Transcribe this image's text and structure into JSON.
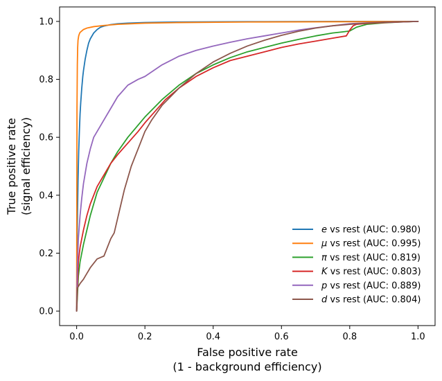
{
  "chart_data": {
    "type": "line",
    "title": "",
    "xlabel_lines": [
      "False positive rate",
      "(1 - background efficiency)"
    ],
    "ylabel_lines": [
      "True positive rate",
      "(signal efficiency)"
    ],
    "xlim": [
      -0.05,
      1.05
    ],
    "ylim": [
      -0.05,
      1.05
    ],
    "xticks": [
      0.0,
      0.2,
      0.4,
      0.6,
      0.8,
      1.0
    ],
    "yticks": [
      0.0,
      0.2,
      0.4,
      0.6,
      0.8,
      1.0
    ],
    "xtick_labels": [
      "0.0",
      "0.2",
      "0.4",
      "0.6",
      "0.8",
      "1.0"
    ],
    "ytick_labels": [
      "0.0",
      "0.2",
      "0.4",
      "0.6",
      "0.8",
      "1.0"
    ],
    "grid": false,
    "legend_position": "lower-right",
    "series": [
      {
        "symbol": "e",
        "suffix": " vs rest (AUC: 0.980)",
        "color": "#1f77b4",
        "x": [
          0,
          0.0005,
          0.001,
          0.002,
          0.004,
          0.006,
          0.008,
          0.01,
          0.012,
          0.015,
          0.018,
          0.02,
          0.025,
          0.03,
          0.035,
          0.04,
          0.05,
          0.06,
          0.07,
          0.08,
          0.1,
          0.12,
          0.15,
          0.2,
          0.3,
          0.5,
          0.8,
          1.0
        ],
        "y": [
          0,
          0.1,
          0.2,
          0.3,
          0.45,
          0.55,
          0.62,
          0.68,
          0.72,
          0.77,
          0.81,
          0.83,
          0.87,
          0.9,
          0.925,
          0.94,
          0.96,
          0.972,
          0.98,
          0.984,
          0.989,
          0.992,
          0.994,
          0.996,
          0.998,
          0.999,
          1.0,
          1.0
        ]
      },
      {
        "symbol": "μ",
        "suffix": " vs rest (AUC: 0.995)",
        "color": "#ff7f0e",
        "x": [
          0,
          0.0005,
          0.001,
          0.002,
          0.003,
          0.004,
          0.006,
          0.008,
          0.01,
          0.015,
          0.02,
          0.03,
          0.05,
          0.08,
          0.12,
          0.2,
          0.3,
          0.5,
          0.8,
          1.0
        ],
        "y": [
          0,
          0.4,
          0.7,
          0.85,
          0.91,
          0.935,
          0.95,
          0.957,
          0.962,
          0.967,
          0.972,
          0.977,
          0.982,
          0.986,
          0.99,
          0.994,
          0.996,
          0.998,
          0.999,
          1.0
        ]
      },
      {
        "symbol": "π",
        "suffix": " vs rest (AUC: 0.819)",
        "color": "#2ca02c",
        "x": [
          0,
          0.005,
          0.01,
          0.02,
          0.03,
          0.04,
          0.05,
          0.06,
          0.08,
          0.1,
          0.12,
          0.15,
          0.2,
          0.25,
          0.3,
          0.35,
          0.4,
          0.45,
          0.5,
          0.55,
          0.6,
          0.65,
          0.7,
          0.75,
          0.78,
          0.8,
          0.82,
          0.85,
          0.9,
          0.95,
          1.0
        ],
        "y": [
          0,
          0.12,
          0.17,
          0.23,
          0.28,
          0.33,
          0.37,
          0.41,
          0.46,
          0.51,
          0.55,
          0.6,
          0.67,
          0.73,
          0.78,
          0.82,
          0.85,
          0.875,
          0.895,
          0.91,
          0.925,
          0.938,
          0.95,
          0.96,
          0.964,
          0.967,
          0.98,
          0.99,
          0.995,
          0.998,
          1.0
        ]
      },
      {
        "symbol": "K",
        "suffix": " vs rest (AUC: 0.803)",
        "color": "#d62728",
        "x": [
          0,
          0.005,
          0.01,
          0.02,
          0.03,
          0.04,
          0.06,
          0.08,
          0.1,
          0.12,
          0.15,
          0.18,
          0.2,
          0.23,
          0.26,
          0.3,
          0.35,
          0.4,
          0.45,
          0.5,
          0.55,
          0.6,
          0.65,
          0.7,
          0.75,
          0.79,
          0.8,
          0.81,
          0.82,
          0.85,
          0.9,
          0.95,
          1.0
        ],
        "y": [
          0,
          0.17,
          0.22,
          0.28,
          0.33,
          0.37,
          0.43,
          0.47,
          0.51,
          0.54,
          0.58,
          0.62,
          0.65,
          0.69,
          0.73,
          0.77,
          0.81,
          0.84,
          0.865,
          0.88,
          0.895,
          0.91,
          0.922,
          0.932,
          0.942,
          0.95,
          0.97,
          0.985,
          0.99,
          0.993,
          0.996,
          0.998,
          1.0
        ]
      },
      {
        "symbol": "p",
        "suffix": " vs rest (AUC: 0.889)",
        "color": "#9467bd",
        "x": [
          0,
          0.002,
          0.005,
          0.01,
          0.015,
          0.02,
          0.03,
          0.04,
          0.05,
          0.06,
          0.08,
          0.1,
          0.12,
          0.15,
          0.18,
          0.2,
          0.25,
          0.3,
          0.35,
          0.4,
          0.45,
          0.5,
          0.55,
          0.6,
          0.65,
          0.7,
          0.75,
          0.8,
          0.85,
          0.9,
          1.0
        ],
        "y": [
          0,
          0.15,
          0.25,
          0.33,
          0.39,
          0.44,
          0.51,
          0.56,
          0.6,
          0.62,
          0.66,
          0.7,
          0.74,
          0.78,
          0.8,
          0.81,
          0.85,
          0.88,
          0.9,
          0.915,
          0.928,
          0.94,
          0.95,
          0.96,
          0.97,
          0.978,
          0.985,
          0.992,
          0.995,
          0.997,
          1.0
        ]
      },
      {
        "symbol": "d",
        "suffix": " vs rest (AUC: 0.804)",
        "color": "#8c564b",
        "x": [
          0,
          0.002,
          0.005,
          0.01,
          0.02,
          0.03,
          0.04,
          0.05,
          0.06,
          0.07,
          0.08,
          0.09,
          0.1,
          0.11,
          0.12,
          0.13,
          0.14,
          0.15,
          0.16,
          0.17,
          0.18,
          0.2,
          0.22,
          0.25,
          0.3,
          0.35,
          0.4,
          0.45,
          0.5,
          0.55,
          0.6,
          0.65,
          0.7,
          0.75,
          0.8,
          0.85,
          0.9,
          1.0
        ],
        "y": [
          0,
          0.08,
          0.085,
          0.095,
          0.11,
          0.13,
          0.15,
          0.165,
          0.18,
          0.185,
          0.19,
          0.22,
          0.25,
          0.27,
          0.32,
          0.37,
          0.42,
          0.46,
          0.5,
          0.53,
          0.56,
          0.62,
          0.66,
          0.71,
          0.77,
          0.82,
          0.86,
          0.89,
          0.915,
          0.935,
          0.952,
          0.966,
          0.977,
          0.985,
          0.99,
          0.994,
          0.997,
          1.0
        ]
      }
    ]
  }
}
